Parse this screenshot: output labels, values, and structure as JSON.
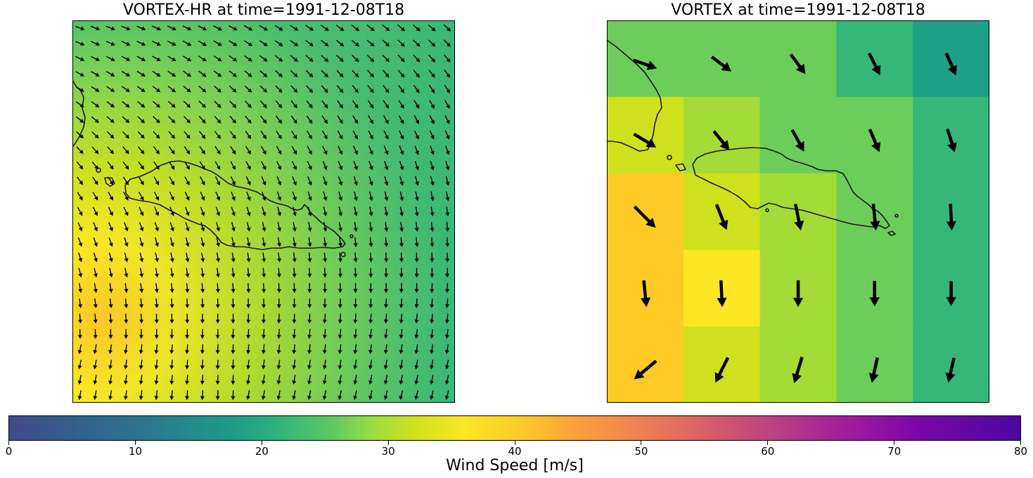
{
  "left_panel": {
    "title": "VORTEX-HR at time=1991-12-08T18",
    "grid_size": 25
  },
  "right_panel": {
    "title": "VORTEX at time=1991-12-08T18",
    "grid_size": 5,
    "wind_speed_cells": [
      [
        28,
        29,
        27,
        25,
        22
      ],
      [
        33,
        31,
        29,
        27,
        25
      ],
      [
        38,
        34,
        31,
        28,
        26
      ],
      [
        38,
        36,
        32,
        28,
        26
      ],
      [
        38,
        34,
        31,
        28,
        26
      ]
    ],
    "vectors": [
      [
        [
          1.0,
          0.35
        ],
        [
          0.8,
          0.6
        ],
        [
          0.6,
          0.8
        ],
        [
          0.45,
          0.9
        ],
        [
          0.4,
          0.9
        ]
      ],
      [
        [
          1.0,
          0.6
        ],
        [
          0.65,
          0.8
        ],
        [
          0.5,
          0.9
        ],
        [
          0.4,
          0.95
        ],
        [
          0.3,
          0.95
        ]
      ],
      [
        [
          0.9,
          0.9
        ],
        [
          0.4,
          1.0
        ],
        [
          0.2,
          1.0
        ],
        [
          0.1,
          1.0
        ],
        [
          0.05,
          1.0
        ]
      ],
      [
        [
          0.1,
          1.0
        ],
        [
          0.05,
          1.0
        ],
        [
          0.0,
          1.0
        ],
        [
          0.0,
          0.9
        ],
        [
          0.0,
          0.85
        ]
      ],
      [
        [
          -0.9,
          0.75
        ],
        [
          -0.5,
          1.0
        ],
        [
          -0.3,
          1.0
        ],
        [
          -0.2,
          0.9
        ],
        [
          -0.2,
          0.85
        ]
      ]
    ]
  },
  "colorbar": {
    "label": "Wind Speed [m/s]",
    "min": 0,
    "max": 80,
    "ticks": [
      "0",
      "10",
      "20",
      "30",
      "40",
      "50",
      "60",
      "70",
      "80"
    ],
    "colormap": [
      "#3f4a88",
      "#2a788e",
      "#1e9b8a",
      "#5ec962",
      "#fde725",
      "#f9a13a",
      "#d5596b",
      "#9c179e",
      "#4b079f"
    ]
  },
  "colors": {
    "coastline": "#1a1a1a",
    "arrows": "#000000",
    "frame": "#000000"
  }
}
